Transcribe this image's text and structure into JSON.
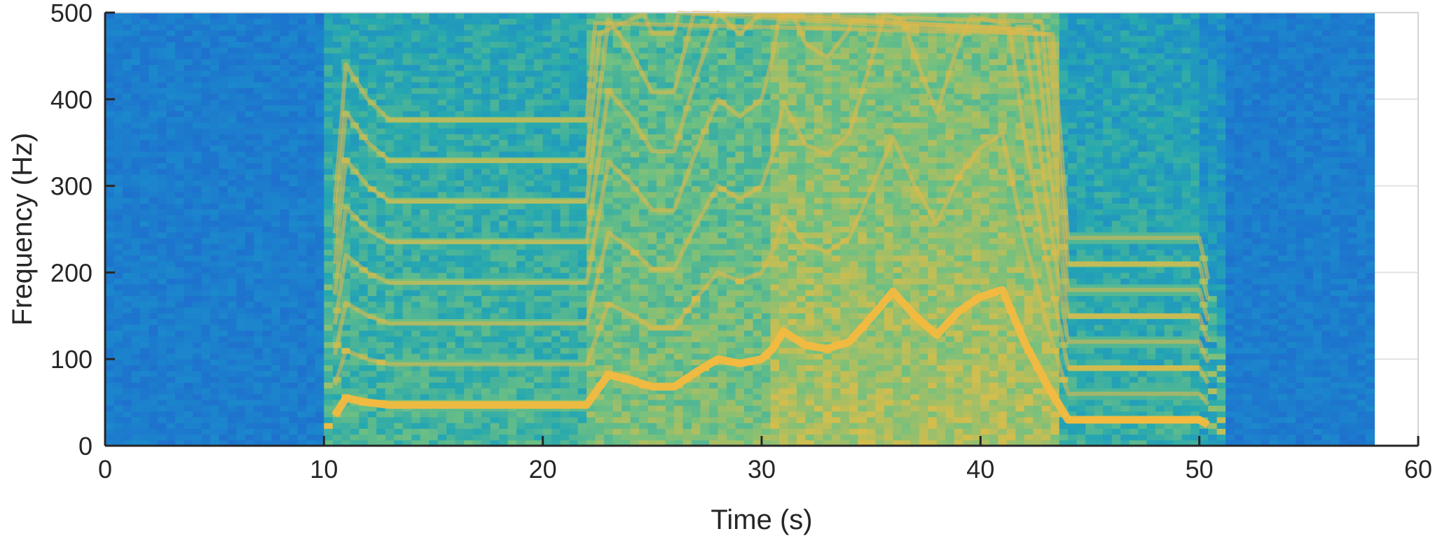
{
  "chart_data": {
    "type": "heatmap",
    "title": "",
    "xlabel": "Time (s)",
    "ylabel": "Frequency (Hz)",
    "xlim": [
      0,
      60
    ],
    "ylim": [
      0,
      500
    ],
    "data_extent": {
      "time": [
        0,
        58
      ],
      "frequency": [
        0,
        500
      ]
    },
    "x_ticks": [
      0,
      10,
      20,
      30,
      40,
      50,
      60
    ],
    "y_ticks": [
      0,
      100,
      200,
      300,
      400,
      500
    ],
    "grid": true,
    "colormap": "parula",
    "colors": {
      "low": "#1c78c8",
      "mid": "#27a8b0",
      "upper": "#86c484",
      "high": "#f3b93f",
      "peak": "#f9f20d"
    },
    "fundamental_track_hz": {
      "time": [
        10,
        11,
        12,
        13,
        16,
        20,
        22,
        23,
        24,
        25,
        26,
        27,
        28,
        29,
        30,
        30.5,
        31,
        32,
        33,
        34,
        35,
        36,
        37,
        38,
        39,
        40,
        41,
        42,
        43,
        44,
        47,
        50,
        51
      ],
      "frequency": [
        15,
        55,
        50,
        47,
        47,
        47,
        47,
        82,
        76,
        68,
        68,
        85,
        100,
        95,
        100,
        112,
        132,
        116,
        112,
        120,
        148,
        178,
        150,
        128,
        155,
        172,
        180,
        120,
        72,
        30,
        30,
        30,
        15
      ]
    },
    "harmonic_multiples": [
      2,
      3,
      4,
      5,
      6,
      7,
      8
    ]
  }
}
